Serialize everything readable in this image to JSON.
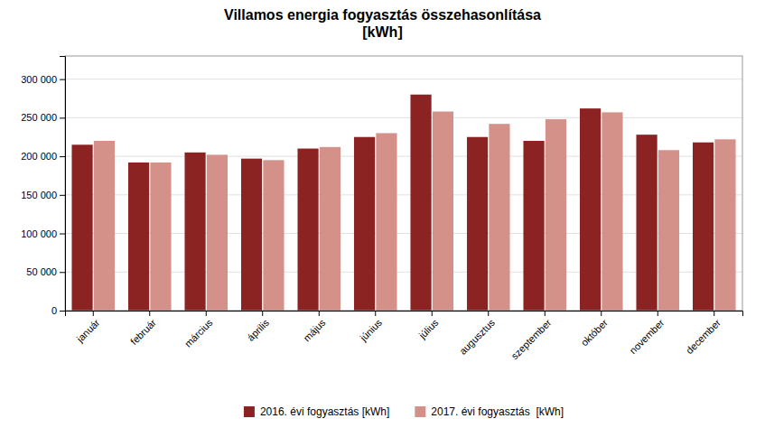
{
  "chart_data": {
    "type": "bar",
    "title": "Villamos energia fogyasztás összehasonlítása\n[kWh]",
    "categories": [
      "január",
      "február",
      "március",
      "április",
      "május",
      "június",
      "július",
      "augusztus",
      "szeptember",
      "október",
      "november",
      "december"
    ],
    "series": [
      {
        "name": "2016. évi fogyasztás [kWh]",
        "color": "#8B2323",
        "values": [
          215000,
          192000,
          205000,
          197000,
          210000,
          225000,
          280000,
          225000,
          220000,
          262000,
          228000,
          218000
        ]
      },
      {
        "name": "2017. évi fogyasztás  [kWh]",
        "color": "#D4918A",
        "values": [
          220000,
          192000,
          202000,
          195000,
          212000,
          230000,
          258000,
          242000,
          248000,
          257000,
          208000,
          222000
        ]
      }
    ],
    "ylim": [
      0,
      330000
    ],
    "yticks": [
      0,
      {
        "value": 50000,
        "label": "50 000"
      },
      {
        "value": 100000,
        "label": "100 000"
      },
      {
        "value": 150000,
        "label": "150 000"
      },
      {
        "value": 200000,
        "label": "200 000"
      },
      {
        "value": 250000,
        "label": "250 000"
      },
      {
        "value": 300000,
        "label": "300 000"
      }
    ],
    "grid": true,
    "legend": "bottom"
  }
}
